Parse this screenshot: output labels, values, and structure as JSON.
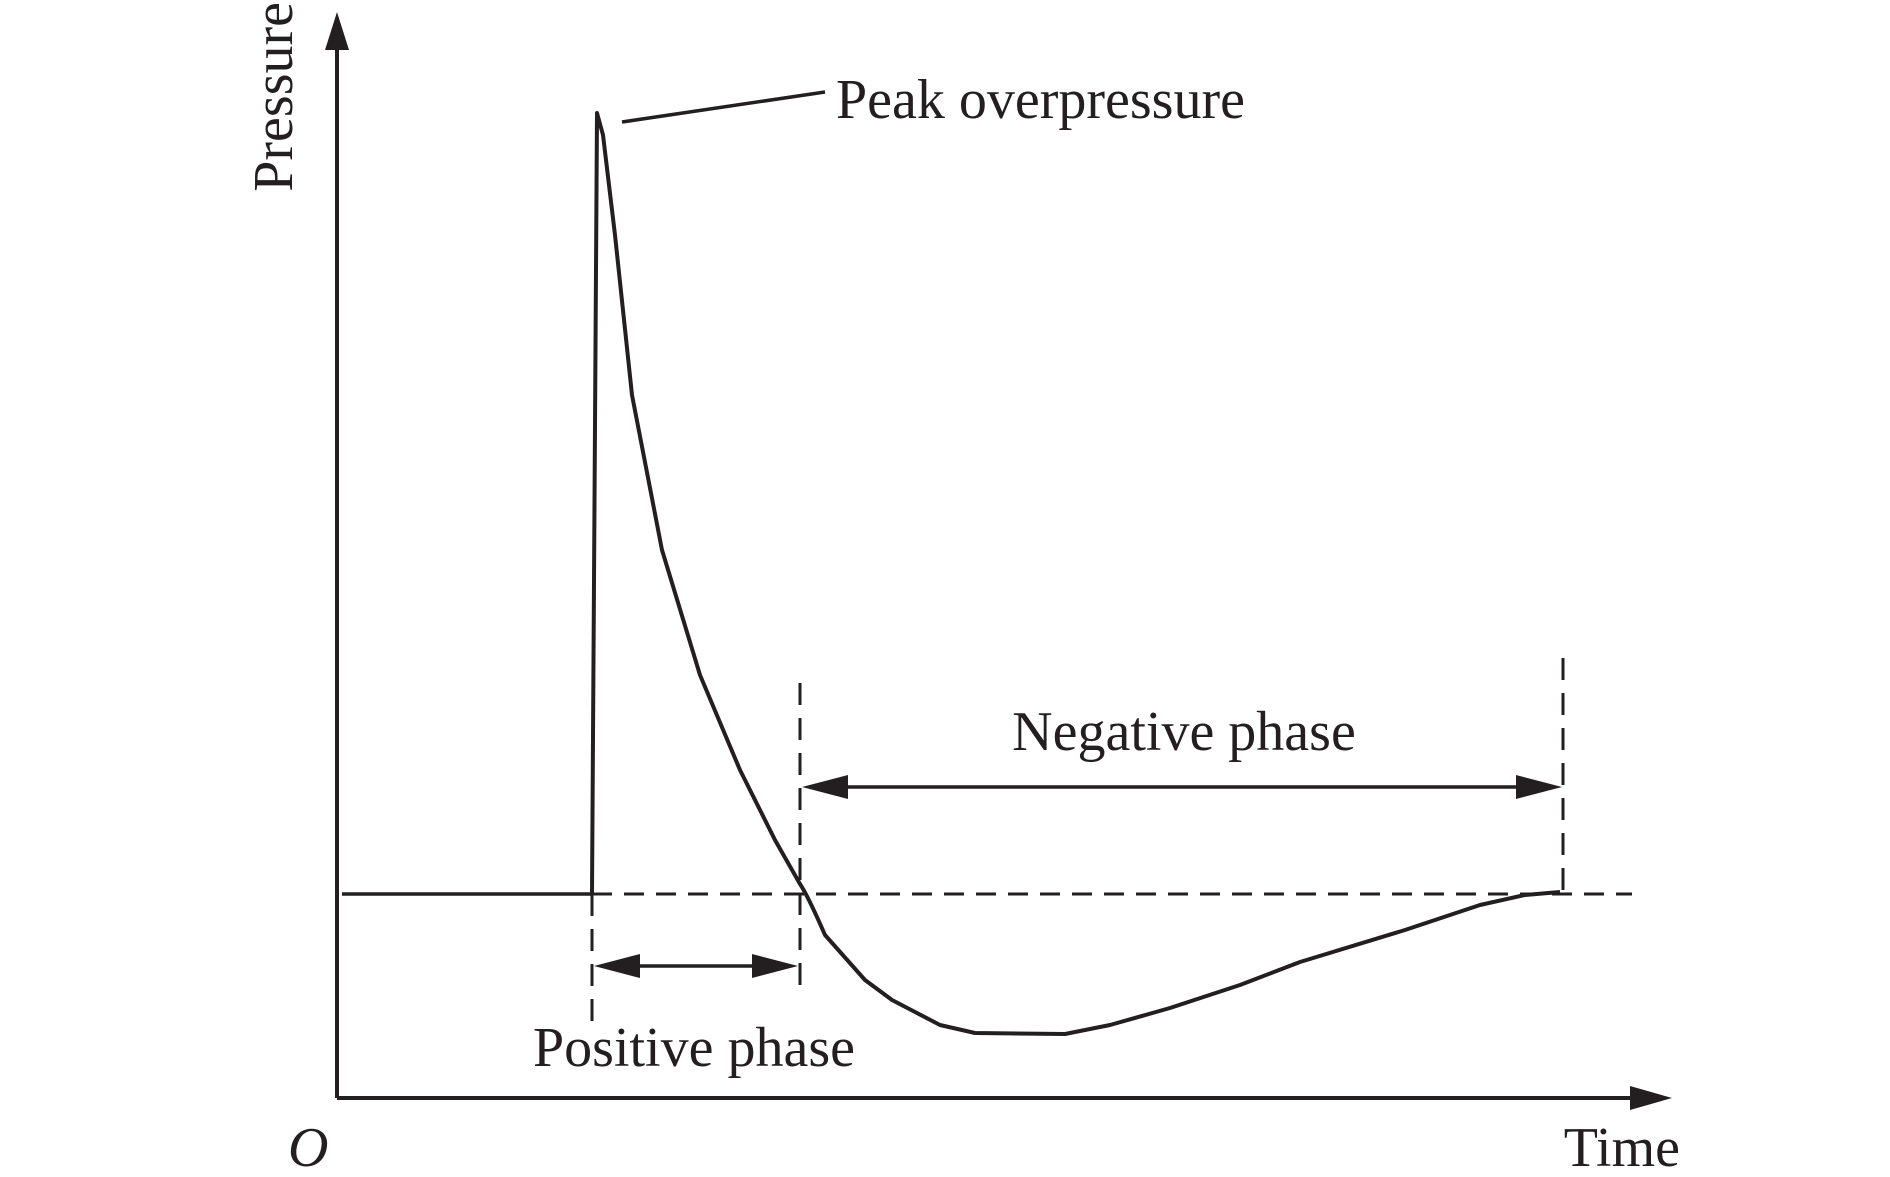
{
  "diagram": {
    "axes": {
      "y_label": "Pressure",
      "x_label": "Time",
      "origin_label": "O"
    },
    "annotations": {
      "peak": "Peak overpressure",
      "negative_phase": "Negative phase",
      "positive_phase": "Positive phase"
    },
    "colors": {
      "ink": "#231f20",
      "background": "#ffffff"
    }
  }
}
